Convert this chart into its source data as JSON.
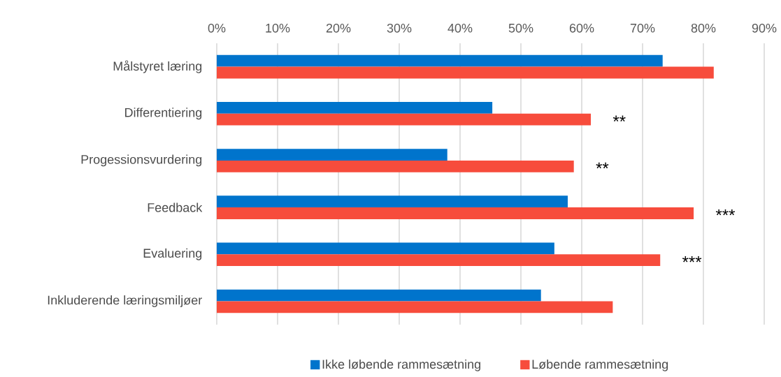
{
  "chart_data": {
    "type": "bar",
    "orientation": "horizontal",
    "categories": [
      "Målstyret læring",
      "Differentiering",
      "Progessionsvurdering",
      "Feedback",
      "Evaluering",
      "Inkluderende læringsmiljøer"
    ],
    "series": [
      {
        "name": "Ikke løbende rammesætning",
        "color": "#0074cc",
        "values": [
          73.3,
          45.3,
          37.9,
          57.7,
          55.5,
          53.3
        ]
      },
      {
        "name": "Løbende rammesætning",
        "color": "#f74c3c",
        "values": [
          81.7,
          61.5,
          58.7,
          78.4,
          72.9,
          65.1
        ]
      }
    ],
    "xlim": [
      0,
      90
    ],
    "xticks": [
      {
        "value": 0,
        "label": "0%"
      },
      {
        "value": 10,
        "label": "10%"
      },
      {
        "value": 20,
        "label": "20%"
      },
      {
        "value": 30,
        "label": "30%"
      },
      {
        "value": 40,
        "label": "40%"
      },
      {
        "value": 50,
        "label": "50%"
      },
      {
        "value": 60,
        "label": "60%"
      },
      {
        "value": 70,
        "label": "70%"
      },
      {
        "value": 80,
        "label": "80%"
      },
      {
        "value": 90,
        "label": "90%"
      }
    ],
    "grid": "x",
    "legend": "bottom",
    "annotations": [
      {
        "text": "**",
        "x": 61.5,
        "y": "Differentiering"
      },
      {
        "text": "**",
        "x": 58.7,
        "y": "Progessionsvurdering"
      },
      {
        "text": "***",
        "x": 78.4,
        "y": "Feedback"
      },
      {
        "text": "***",
        "x": 72.9,
        "y": "Evaluering"
      }
    ]
  }
}
